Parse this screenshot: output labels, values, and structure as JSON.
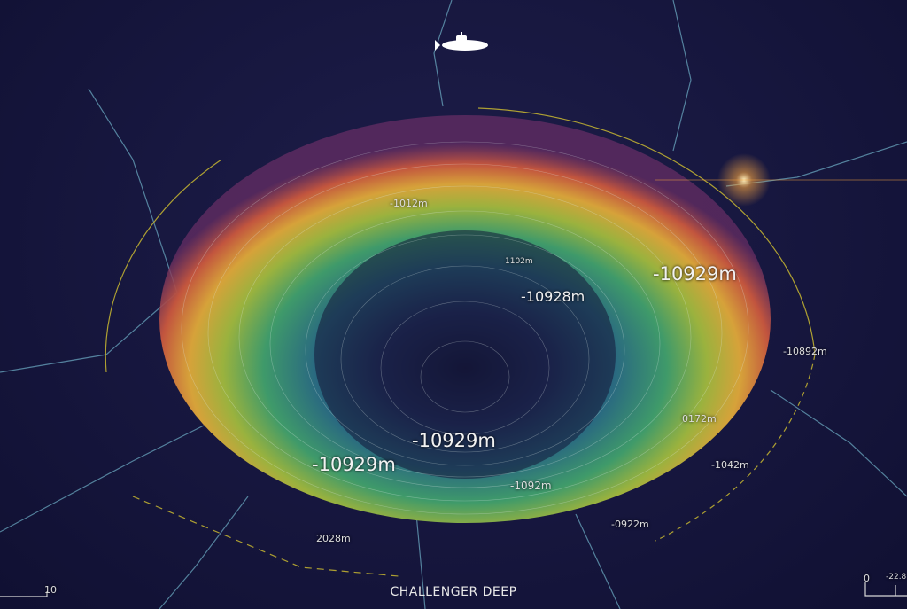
{
  "title": "CHALLENGER DEEP",
  "depth_labels": {
    "right_major": "-10929m",
    "center_upper": "-10928m",
    "center_bottom": "-10929m",
    "left_lower": "-10929m",
    "upper_faint": "-1012m",
    "inner_faint": "1102m",
    "bottom_rim": "-1092m",
    "right_edge": "-10892m",
    "right_lower": "0172m",
    "right_lowest": "-1042m",
    "bottom_right": "-0922m",
    "bottom_left": "2028m"
  },
  "scale_left": {
    "value": "10"
  },
  "scale_right": {
    "start": "0",
    "end": "-22.8"
  },
  "colors": {
    "background": "#15153a",
    "crater_center": "#1a1f4a",
    "crater_mid": "#2e8a7a",
    "crater_green": "#5fae4a",
    "crater_yellow": "#d9a83a",
    "crater_rim": "#8a3a6a",
    "guide_arc": "#c9b830",
    "contour_lines": "#cfe8e0"
  },
  "icons": {
    "submarine": "submarine-icon"
  }
}
